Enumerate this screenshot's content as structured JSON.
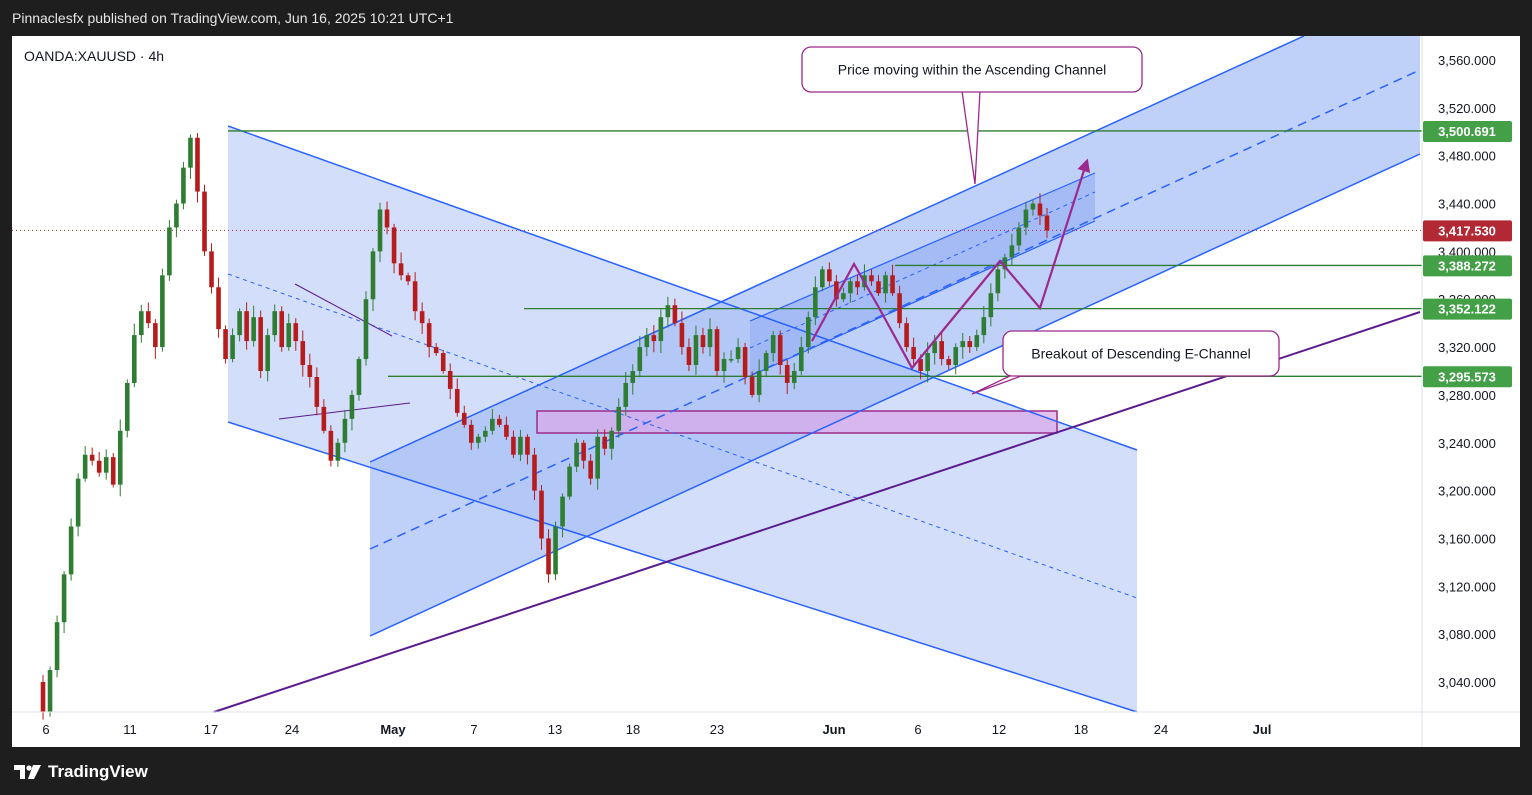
{
  "header": {
    "publisher_line": "Pinnaclesfx published on TradingView.com, Jun 16, 2025 10:21 UTC+1"
  },
  "symbol": {
    "label": "OANDA:XAUUSD · 4h"
  },
  "footer": {
    "brand": "TradingView"
  },
  "colors": {
    "channel_blue": "#2962ff",
    "channel_fill": "#bbcdf8",
    "level_green": "#2e7d32",
    "trendline_purple": "#5b1a8f",
    "path_purple": "#9c2a8c",
    "bull": "#2e7d32",
    "bear": "#b71c1c",
    "price_red": "#b22833"
  },
  "chart_data": {
    "type": "candlestick",
    "symbol": "OANDA:XAUUSD",
    "timeframe": "4h",
    "y_axis": {
      "ticks": [
        "3,560.000",
        "3,520.000",
        "3,480.000",
        "3,440.000",
        "3,400.000",
        "3,360.000",
        "3,320.000",
        "3,280.000",
        "3,240.000",
        "3,200.000",
        "3,160.000",
        "3,120.000",
        "3,080.000",
        "3,040.000"
      ],
      "tick_values": [
        3560,
        3520,
        3480,
        3440,
        3400,
        3360,
        3320,
        3280,
        3240,
        3200,
        3160,
        3120,
        3080,
        3040
      ]
    },
    "x_axis": {
      "ticks": [
        "6",
        "11",
        "17",
        "24",
        "May",
        "7",
        "13",
        "18",
        "23",
        "Jun",
        "6",
        "12",
        "18",
        "24",
        "Jul"
      ],
      "bold": [
        false,
        false,
        false,
        false,
        true,
        false,
        false,
        false,
        false,
        true,
        false,
        false,
        false,
        false,
        true
      ]
    },
    "current_price": {
      "label": "3,417.530",
      "value": 3417.53
    },
    "levels": [
      {
        "label": "3,500.691",
        "value": 3500.691
      },
      {
        "label": "3,388.272",
        "value": 3388.272
      },
      {
        "label": "3,352.122",
        "value": 3352.122
      },
      {
        "label": "3,295.573",
        "value": 3295.573
      }
    ],
    "annotations": [
      {
        "text": "Price moving within the Ascending Channel"
      },
      {
        "text": "Breakout of Descending E-Channel"
      }
    ],
    "price_path": [
      3040,
      3015,
      3050,
      3090,
      3130,
      3170,
      3210,
      3230,
      3225,
      3215,
      3228,
      3205,
      3250,
      3290,
      3330,
      3350,
      3340,
      3320,
      3380,
      3420,
      3440,
      3470,
      3495,
      3450,
      3400,
      3370,
      3335,
      3310,
      3330,
      3350,
      3325,
      3345,
      3300,
      3330,
      3350,
      3320,
      3340,
      3325,
      3305,
      3295,
      3270,
      3250,
      3225,
      3240,
      3260,
      3280,
      3310,
      3360,
      3400,
      3435,
      3420,
      3390,
      3380,
      3375,
      3350,
      3340,
      3320,
      3315,
      3300,
      3285,
      3265,
      3255,
      3240,
      3245,
      3250,
      3260,
      3255,
      3245,
      3230,
      3245,
      3230,
      3200,
      3160,
      3130,
      3170,
      3195,
      3220,
      3240,
      3225,
      3210,
      3245,
      3235,
      3250,
      3270,
      3290,
      3300,
      3320,
      3330,
      3325,
      3345,
      3355,
      3340,
      3320,
      3305,
      3330,
      3320,
      3335,
      3300,
      3310,
      3310,
      3320,
      3295,
      3280,
      3300,
      3315,
      3330,
      3305,
      3290,
      3300,
      3320,
      3345,
      3370,
      3385,
      3375,
      3360,
      3365,
      3375,
      3370,
      3380,
      3375,
      3365,
      3380,
      3365,
      3340,
      3320,
      3310,
      3300,
      3315,
      3325,
      3310,
      3305,
      3320,
      3325,
      3320,
      3330,
      3345,
      3365,
      3385,
      3395,
      3405,
      3420,
      3435,
      3440,
      3430,
      3417.53
    ]
  }
}
